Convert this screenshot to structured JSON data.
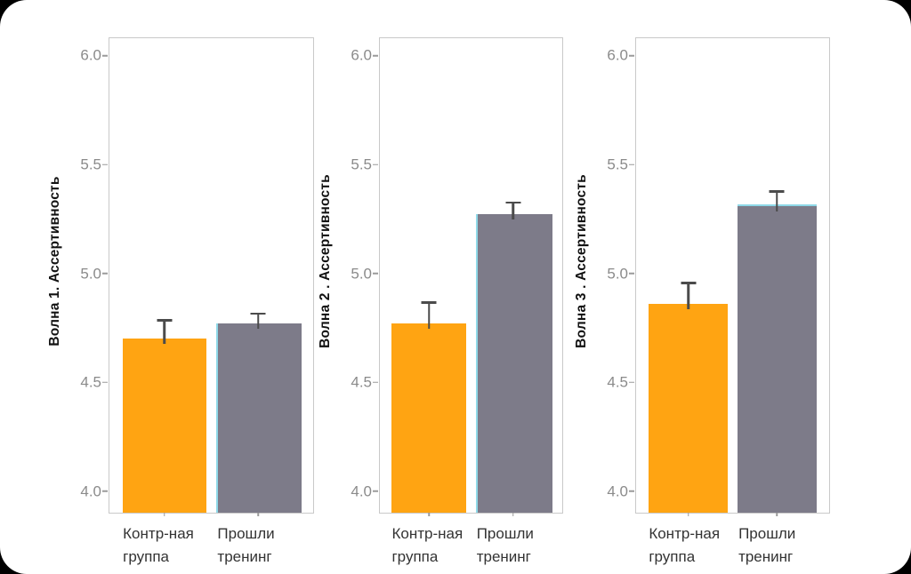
{
  "palette": {
    "control_bar": "#FFA412",
    "trained_bar": "#7D7B89",
    "trained_bar_accent_edge": "#8FD9E8",
    "error_bar": "#4B4B4B",
    "tick_label": "#8B8B8B",
    "panel_border": "#C9C9C9",
    "axis_title": "#111111",
    "category_label": "#333333",
    "page_background": "#FFFFFF",
    "corner_mask": "#000000"
  },
  "chart_data": [
    {
      "type": "bar",
      "title": "",
      "ylabel": "Волна 1. Ассертивность",
      "categories": [
        "Контр-ная\nгруппа",
        "Прошли\nтренинг"
      ],
      "values": [
        4.7,
        4.77
      ],
      "error_upper": [
        4.79,
        4.82
      ],
      "ylim": [
        3.9,
        6.08
      ],
      "yticks": [
        "4.0",
        "4.5",
        "5.0",
        "5.5",
        "6.0"
      ],
      "bar_colors": [
        "#FFA412",
        "#7D7B89"
      ],
      "accent_edge": "left",
      "grid": "off",
      "legend": "none"
    },
    {
      "type": "bar",
      "title": "",
      "ylabel": "Волна 2 . Ассертивность",
      "categories": [
        "Контр-ная\nгруппа",
        "Прошли\nтренинг"
      ],
      "values": [
        4.77,
        5.27
      ],
      "error_upper": [
        4.87,
        5.33
      ],
      "ylim": [
        3.9,
        6.08
      ],
      "yticks": [
        "4.0",
        "4.5",
        "5.0",
        "5.5",
        "6.0"
      ],
      "bar_colors": [
        "#FFA412",
        "#7D7B89"
      ],
      "accent_edge": "left",
      "grid": "off",
      "legend": "none"
    },
    {
      "type": "bar",
      "title": "",
      "ylabel": "Волна 3 . Ассертивность",
      "categories": [
        "Контр-ная\nгруппа",
        "Прошли\nтренинг"
      ],
      "values": [
        4.86,
        5.31
      ],
      "error_upper": [
        4.96,
        5.38
      ],
      "ylim": [
        3.9,
        6.08
      ],
      "yticks": [
        "4.0",
        "4.5",
        "5.0",
        "5.5",
        "6.0"
      ],
      "bar_colors": [
        "#FFA412",
        "#7D7B89"
      ],
      "accent_edge": "top",
      "grid": "off",
      "legend": "none"
    }
  ]
}
